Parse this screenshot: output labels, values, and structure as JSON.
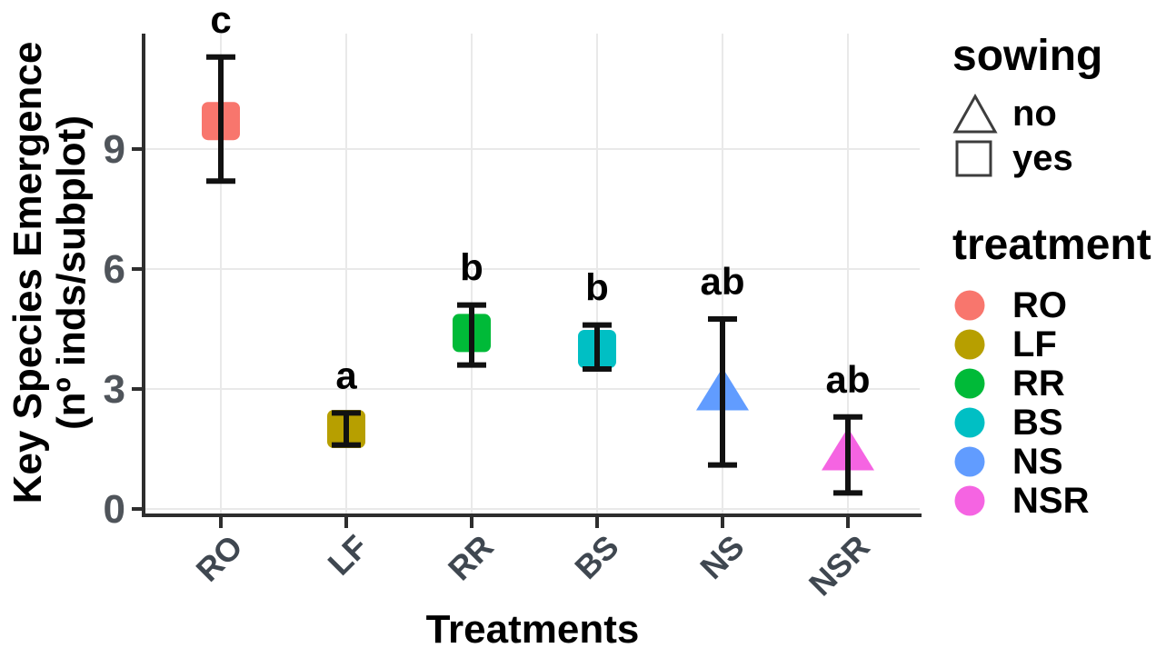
{
  "chart_data": {
    "type": "scatter",
    "title": "",
    "xlabel": "Treatments",
    "ylabel_line1": "Key Species Emergence",
    "ylabel_line2": "(nº inds/subplot)",
    "x_categories": [
      "RO",
      "LF",
      "RR",
      "BS",
      "NS",
      "NSR"
    ],
    "yticks": [
      0,
      3,
      6,
      9
    ],
    "ylim": [
      0,
      12
    ],
    "grid": {
      "horizontal_major_at": [
        0,
        3,
        6,
        9
      ],
      "vertical_per_category": true
    },
    "legend_position": "right",
    "points": [
      {
        "treatment": "RO",
        "sowing": "yes",
        "marker": "square",
        "color": "#F8766D",
        "mean": 9.7,
        "ci_low": 8.2,
        "ci_high": 11.3,
        "sig_letter": "c"
      },
      {
        "treatment": "LF",
        "sowing": "yes",
        "marker": "square",
        "color": "#B79F00",
        "mean": 2.0,
        "ci_low": 1.6,
        "ci_high": 2.4,
        "sig_letter": "a"
      },
      {
        "treatment": "RR",
        "sowing": "yes",
        "marker": "square",
        "color": "#00BA38",
        "mean": 4.4,
        "ci_low": 3.6,
        "ci_high": 5.1,
        "sig_letter": "b"
      },
      {
        "treatment": "BS",
        "sowing": "yes",
        "marker": "square",
        "color": "#00BFC4",
        "mean": 4.0,
        "ci_low": 3.5,
        "ci_high": 4.6,
        "sig_letter": "b"
      },
      {
        "treatment": "NS",
        "sowing": "no",
        "marker": "triangle",
        "color": "#619CFF",
        "mean": 3.0,
        "ci_low": 1.1,
        "ci_high": 4.75,
        "sig_letter": "ab"
      },
      {
        "treatment": "NSR",
        "sowing": "no",
        "marker": "triangle",
        "color": "#F564E2",
        "mean": 1.5,
        "ci_low": 0.4,
        "ci_high": 2.3,
        "sig_letter": "ab"
      }
    ]
  },
  "legends": {
    "sowing": {
      "title": "sowing",
      "items": [
        {
          "label": "no",
          "marker": "triangle-outline"
        },
        {
          "label": "yes",
          "marker": "square-outline"
        }
      ]
    },
    "treatment": {
      "title": "treatment",
      "items": [
        {
          "label": "RO",
          "color": "#F8766D"
        },
        {
          "label": "LF",
          "color": "#B79F00"
        },
        {
          "label": "RR",
          "color": "#00BA38"
        },
        {
          "label": "BS",
          "color": "#00BFC4"
        },
        {
          "label": "NS",
          "color": "#619CFF"
        },
        {
          "label": "NSR",
          "color": "#F564E2"
        }
      ]
    }
  },
  "colors": {
    "background": "#ffffff",
    "axis_line": "#2e2e2e",
    "grid_line": "#e9e9e9",
    "y_tick_label": "#4f545a",
    "x_tick_label": "#3f4750",
    "error_bar": "#111111",
    "sig_letter": "#000000",
    "legend_outline": "#3d3d3d"
  }
}
